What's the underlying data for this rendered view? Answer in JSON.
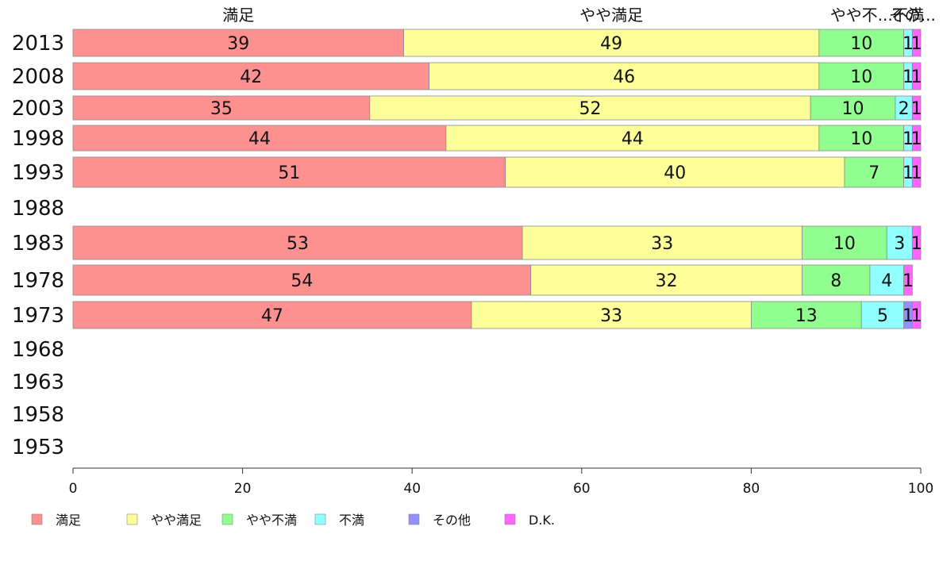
{
  "chart_data": {
    "type": "bar",
    "orientation": "horizontal",
    "stacked": true,
    "categories": [
      "2013",
      "2008",
      "2003",
      "1998",
      "1993",
      "1988",
      "1983",
      "1978",
      "1973",
      "1968",
      "1963",
      "1958",
      "1953"
    ],
    "series": [
      {
        "name": "満足",
        "color": "#ff9090",
        "values": [
          39,
          42,
          35,
          44,
          51,
          null,
          53,
          54,
          47,
          null,
          null,
          null,
          null
        ]
      },
      {
        "name": "やや満足",
        "color": "#ffff99",
        "values": [
          49,
          46,
          52,
          44,
          40,
          null,
          33,
          32,
          33,
          null,
          null,
          null,
          null
        ]
      },
      {
        "name": "やや不満",
        "color": "#90ff90",
        "values": [
          10,
          10,
          10,
          10,
          7,
          null,
          10,
          8,
          13,
          null,
          null,
          null,
          null
        ]
      },
      {
        "name": "不満",
        "color": "#90ffff",
        "values": [
          1,
          1,
          2,
          1,
          1,
          null,
          3,
          4,
          5,
          null,
          null,
          null,
          null
        ]
      },
      {
        "name": "その他",
        "color": "#9090ff",
        "values": [
          0,
          0,
          0,
          0,
          0,
          null,
          0,
          0,
          1,
          null,
          null,
          null,
          null
        ]
      },
      {
        "name": "D.K.",
        "color": "#ff66ff",
        "values": [
          1,
          1,
          1,
          1,
          1,
          null,
          1,
          1,
          1,
          null,
          null,
          null,
          null
        ]
      }
    ],
    "top_labels": [
      "満足",
      "やや満足",
      "やや不...",
      "不満",
      "その..."
    ],
    "x_ticks": [
      "0",
      "20",
      "40",
      "60",
      "80",
      "100"
    ],
    "xlim": [
      0,
      100
    ],
    "grid": false,
    "legend_position": "bottom"
  }
}
